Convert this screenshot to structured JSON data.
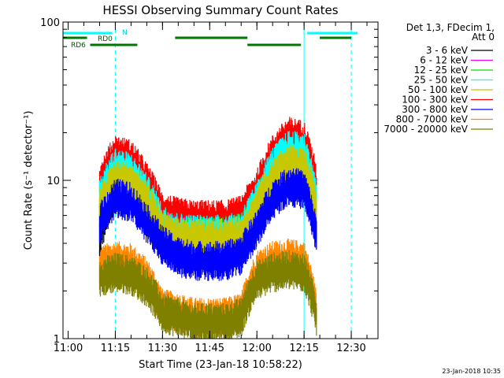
{
  "chart_data": {
    "type": "line",
    "title": "HESSI Observing Summary Count Rates",
    "xlabel": "Start Time (23-Jan-18 10:58:22)",
    "ylabel": "Count Rate (s⁻¹ detector⁻¹)",
    "y_scale": "log",
    "ylim": [
      1,
      100
    ],
    "xlim": [
      "10:58:22",
      "12:38:30"
    ],
    "x_ticks": [
      "11:00",
      "11:15",
      "11:30",
      "11:45",
      "12:00",
      "12:15",
      "12:30"
    ],
    "y_ticks": [
      "1",
      "10",
      "100"
    ],
    "footer_timestamp": "23-Jan-2018 10:35",
    "legend": {
      "placement": "top-right, outside plot",
      "header": [
        "Det 1,3, FDecim 1,",
        "Att 0"
      ]
    },
    "series": [
      {
        "name": "3 - 6 keV",
        "color": "#000000",
        "x": [
          "11:10",
          "11:15",
          "11:20",
          "11:25",
          "11:30",
          "11:35",
          "11:40",
          "11:45",
          "11:50",
          "11:55",
          "12:00",
          "12:05",
          "12:10",
          "12:15",
          "12:19"
        ],
        "y": [
          4.5,
          8.5,
          8.2,
          6.0,
          4.2,
          3.8,
          3.8,
          3.8,
          3.8,
          4.0,
          5.5,
          8.5,
          10.5,
          10.0,
          5.0
        ]
      },
      {
        "name": "6 - 12 keV",
        "color": "#ff00ff",
        "x": [
          "11:10",
          "11:15",
          "11:20",
          "11:25",
          "11:30",
          "11:35",
          "11:40",
          "11:45",
          "11:50",
          "11:55",
          "12:00",
          "12:05",
          "12:10",
          "12:15",
          "12:19"
        ],
        "y": [
          6.0,
          10.0,
          9.5,
          7.0,
          5.0,
          4.6,
          4.5,
          4.5,
          4.5,
          4.7,
          6.5,
          10.5,
          13.0,
          12.5,
          6.5
        ]
      },
      {
        "name": "12 - 25 keV",
        "color": "#00dd00",
        "x": [
          "11:10",
          "11:15",
          "11:20",
          "11:25",
          "11:30",
          "11:35",
          "11:40",
          "11:45",
          "11:50",
          "11:55",
          "12:00",
          "12:05",
          "12:10",
          "12:15",
          "12:19"
        ],
        "y": [
          7.0,
          11.0,
          10.5,
          7.5,
          5.2,
          4.7,
          4.6,
          4.6,
          4.6,
          4.8,
          7.0,
          11.5,
          14.5,
          14.0,
          7.0
        ]
      },
      {
        "name": "25 - 50 keV",
        "color": "#00ffff",
        "x": [
          "11:10",
          "11:15",
          "11:20",
          "11:25",
          "11:30",
          "11:35",
          "11:40",
          "11:45",
          "11:50",
          "11:55",
          "12:00",
          "12:05",
          "12:10",
          "12:15",
          "12:19"
        ],
        "y": [
          8.0,
          12.5,
          11.5,
          8.5,
          5.4,
          4.8,
          4.7,
          4.7,
          4.7,
          4.9,
          7.5,
          12.5,
          16.0,
          15.5,
          7.5
        ]
      },
      {
        "name": "50 - 100 keV",
        "color": "#c8c800",
        "x": [
          "11:10",
          "11:15",
          "11:20",
          "11:25",
          "11:30",
          "11:35",
          "11:40",
          "11:45",
          "11:50",
          "11:55",
          "12:00",
          "12:05",
          "12:10",
          "12:15",
          "12:19"
        ],
        "y": [
          7.0,
          10.5,
          10.0,
          7.5,
          5.0,
          4.5,
          4.4,
          4.4,
          4.4,
          4.6,
          6.8,
          10.5,
          13.0,
          12.5,
          6.5
        ]
      },
      {
        "name": "100 - 300 keV",
        "color": "#ff0000",
        "x": [
          "11:10",
          "11:15",
          "11:20",
          "11:25",
          "11:30",
          "11:35",
          "11:40",
          "11:45",
          "11:50",
          "11:55",
          "12:00",
          "12:05",
          "12:10",
          "12:15",
          "12:19"
        ],
        "y": [
          10.0,
          15.0,
          14.0,
          10.0,
          6.5,
          6.0,
          5.8,
          5.8,
          5.8,
          6.2,
          9.0,
          15.0,
          19.5,
          18.5,
          9.5
        ]
      },
      {
        "name": "300 - 800 keV",
        "color": "#0000ff",
        "x": [
          "11:10",
          "11:15",
          "11:20",
          "11:25",
          "11:30",
          "11:35",
          "11:40",
          "11:45",
          "11:50",
          "11:55",
          "12:00",
          "12:05",
          "12:10",
          "12:15",
          "12:19"
        ],
        "y": [
          5.5,
          8.0,
          7.5,
          5.5,
          4.0,
          3.4,
          3.2,
          3.2,
          3.2,
          3.5,
          5.0,
          7.8,
          9.5,
          9.0,
          4.5
        ]
      },
      {
        "name": "800 - 7000 keV",
        "color": "#ff8800",
        "x": [
          "11:10",
          "11:15",
          "11:20",
          "11:25",
          "11:30",
          "11:35",
          "11:40",
          "11:45",
          "11:50",
          "11:55",
          "12:00",
          "12:05",
          "12:10",
          "12:15",
          "12:19"
        ],
        "y": [
          3.0,
          3.2,
          3.1,
          2.5,
          1.6,
          1.5,
          1.4,
          1.4,
          1.4,
          1.5,
          2.8,
          3.2,
          3.3,
          3.2,
          1.5
        ]
      },
      {
        "name": "7000 - 20000 keV",
        "color": "#808000",
        "x": [
          "11:10",
          "11:15",
          "11:20",
          "11:25",
          "11:30",
          "11:35",
          "11:40",
          "11:45",
          "11:50",
          "11:55",
          "12:00",
          "12:05",
          "12:10",
          "12:15",
          "12:19"
        ],
        "y": [
          2.5,
          2.7,
          2.6,
          2.2,
          1.5,
          1.4,
          1.3,
          1.3,
          1.3,
          1.4,
          2.4,
          2.7,
          2.8,
          2.7,
          1.4
        ]
      }
    ],
    "flags": [
      {
        "label": "N",
        "color": "#00ffff",
        "y": 88,
        "segments": [
          [
            "10:58:22",
            "11:14"
          ],
          [
            "12:16",
            "12:32"
          ]
        ]
      },
      {
        "label": "RD0",
        "color": "#007700",
        "y": 75,
        "segments": [
          [
            "10:58:22",
            "11:06"
          ],
          [
            "11:34",
            "11:57"
          ],
          [
            "12:20",
            "12:30"
          ]
        ]
      },
      {
        "label": "RD6",
        "color": "#007700",
        "y": 66,
        "segments": [
          [
            "11:07",
            "11:22"
          ],
          [
            "11:57",
            "12:14"
          ]
        ]
      }
    ],
    "vertical_lines": [
      {
        "x": "10:58:22",
        "color": "#00ffff",
        "style": "solid"
      },
      {
        "x": "11:15",
        "color": "#00ffff",
        "style": "dashed"
      },
      {
        "x": "12:15",
        "color": "#00ffff",
        "style": "solid"
      },
      {
        "x": "12:30",
        "color": "#00ffff",
        "style": "dashed"
      }
    ]
  }
}
